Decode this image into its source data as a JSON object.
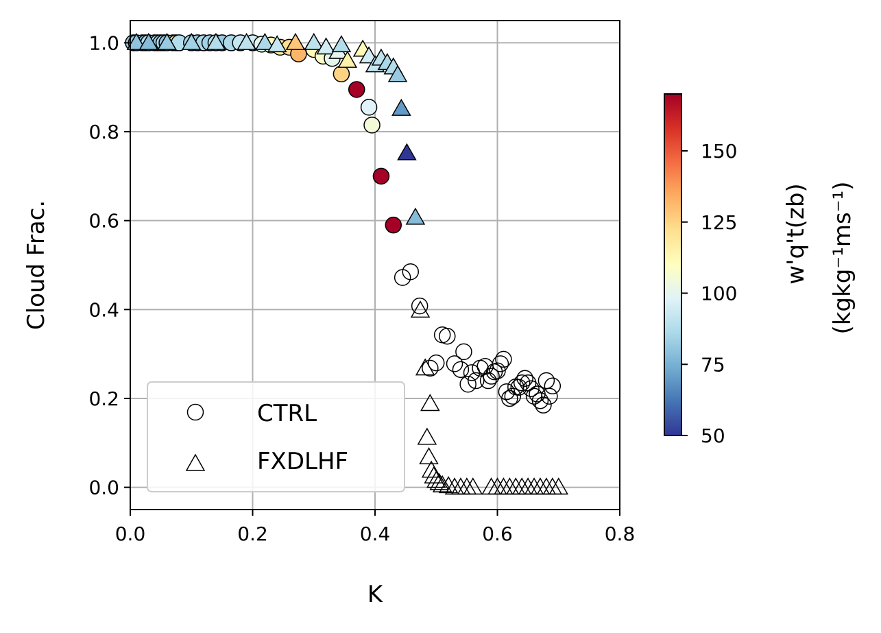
{
  "chart_data": {
    "type": "scatter",
    "xlabel": "K",
    "ylabel": "Cloud Frac.",
    "xlim": [
      0.0,
      0.8
    ],
    "ylim": [
      -0.05,
      1.05
    ],
    "xticks": [
      "0.0",
      "0.2",
      "0.4",
      "0.6",
      "0.8"
    ],
    "yticks": [
      "0.0",
      "0.2",
      "0.4",
      "0.6",
      "0.8",
      "1.0"
    ],
    "grid": true,
    "legend_position": "lower-left",
    "colormap": "RdYlBu_r",
    "colormap_stops": [
      "#313695",
      "#4575b4",
      "#74add1",
      "#abd9e9",
      "#e0f3f8",
      "#ffffbf",
      "#fee090",
      "#fdae61",
      "#f46d43",
      "#d73027",
      "#a50026"
    ],
    "colorbar": {
      "range": [
        50,
        170
      ],
      "ticks": [
        "50",
        "75",
        "100",
        "125",
        "150"
      ],
      "label_line1": "w'q't(zb)",
      "label_line2": "(kgkg⁻¹ms⁻¹)"
    },
    "series": [
      {
        "name": "CTRL",
        "marker": "circle",
        "colored_points": [
          [
            0.005,
            1.0,
            80
          ],
          [
            0.01,
            1.0,
            82
          ],
          [
            0.02,
            1.0,
            85
          ],
          [
            0.025,
            1.0,
            78
          ],
          [
            0.03,
            1.0,
            88
          ],
          [
            0.04,
            1.0,
            84
          ],
          [
            0.045,
            1.0,
            90
          ],
          [
            0.05,
            1.0,
            82
          ],
          [
            0.055,
            1.0,
            86
          ],
          [
            0.06,
            1.0,
            80
          ],
          [
            0.07,
            1.0,
            84
          ],
          [
            0.075,
            1.0,
            120
          ],
          [
            0.08,
            1.0,
            88
          ],
          [
            0.1,
            1.0,
            85
          ],
          [
            0.11,
            1.0,
            82
          ],
          [
            0.12,
            1.0,
            86
          ],
          [
            0.13,
            1.0,
            84
          ],
          [
            0.14,
            1.0,
            90
          ],
          [
            0.15,
            1.0,
            82
          ],
          [
            0.165,
            1.0,
            86
          ],
          [
            0.18,
            1.0,
            92
          ],
          [
            0.2,
            1.0,
            95
          ],
          [
            0.215,
            0.997,
            100
          ],
          [
            0.23,
            0.995,
            110
          ],
          [
            0.245,
            0.99,
            118
          ],
          [
            0.26,
            0.99,
            122
          ],
          [
            0.275,
            0.975,
            132
          ],
          [
            0.3,
            0.985,
            112
          ],
          [
            0.315,
            0.97,
            108
          ],
          [
            0.33,
            0.965,
            100
          ],
          [
            0.345,
            0.93,
            125
          ],
          [
            0.37,
            0.895,
            170
          ],
          [
            0.39,
            0.855,
            98
          ],
          [
            0.395,
            0.815,
            105
          ],
          [
            0.41,
            0.7,
            170
          ],
          [
            0.43,
            0.59,
            170
          ]
        ],
        "hollow_points": [
          [
            0.445,
            0.472
          ],
          [
            0.458,
            0.485
          ],
          [
            0.473,
            0.408
          ],
          [
            0.49,
            0.268
          ],
          [
            0.5,
            0.28
          ],
          [
            0.51,
            0.343
          ],
          [
            0.518,
            0.34
          ],
          [
            0.53,
            0.278
          ],
          [
            0.54,
            0.265
          ],
          [
            0.545,
            0.305
          ],
          [
            0.552,
            0.232
          ],
          [
            0.558,
            0.258
          ],
          [
            0.565,
            0.24
          ],
          [
            0.572,
            0.268
          ],
          [
            0.58,
            0.272
          ],
          [
            0.585,
            0.24
          ],
          [
            0.59,
            0.25
          ],
          [
            0.595,
            0.26
          ],
          [
            0.6,
            0.262
          ],
          [
            0.605,
            0.278
          ],
          [
            0.61,
            0.288
          ],
          [
            0.615,
            0.215
          ],
          [
            0.62,
            0.2
          ],
          [
            0.625,
            0.205
          ],
          [
            0.63,
            0.226
          ],
          [
            0.635,
            0.225
          ],
          [
            0.64,
            0.235
          ],
          [
            0.645,
            0.245
          ],
          [
            0.65,
            0.235
          ],
          [
            0.655,
            0.222
          ],
          [
            0.66,
            0.205
          ],
          [
            0.665,
            0.21
          ],
          [
            0.67,
            0.195
          ],
          [
            0.675,
            0.185
          ],
          [
            0.68,
            0.24
          ],
          [
            0.685,
            0.205
          ],
          [
            0.69,
            0.228
          ]
        ]
      },
      {
        "name": "FXDLHF",
        "marker": "triangle",
        "colored_points": [
          [
            0.01,
            1.0,
            80
          ],
          [
            0.03,
            1.0,
            78
          ],
          [
            0.06,
            1.0,
            82
          ],
          [
            0.1,
            1.0,
            84
          ],
          [
            0.14,
            1.0,
            88
          ],
          [
            0.19,
            1.0,
            90
          ],
          [
            0.22,
            1.0,
            86
          ],
          [
            0.24,
            0.995,
            92
          ],
          [
            0.27,
            1.0,
            128
          ],
          [
            0.3,
            1.0,
            90
          ],
          [
            0.32,
            0.99,
            95
          ],
          [
            0.34,
            0.98,
            100
          ],
          [
            0.345,
            0.995,
            88
          ],
          [
            0.355,
            0.96,
            115
          ],
          [
            0.38,
            0.985,
            112
          ],
          [
            0.39,
            0.97,
            95
          ],
          [
            0.4,
            0.95,
            92
          ],
          [
            0.41,
            0.965,
            90
          ],
          [
            0.42,
            0.955,
            86
          ],
          [
            0.43,
            0.945,
            88
          ],
          [
            0.437,
            0.928,
            82
          ],
          [
            0.443,
            0.852,
            70
          ],
          [
            0.452,
            0.752,
            50
          ],
          [
            0.466,
            0.607,
            78
          ]
        ],
        "hollow_points": [
          [
            0.474,
            0.398
          ],
          [
            0.482,
            0.268
          ],
          [
            0.49,
            0.188
          ],
          [
            0.485,
            0.112
          ],
          [
            0.488,
            0.068
          ],
          [
            0.492,
            0.038
          ],
          [
            0.496,
            0.025
          ],
          [
            0.5,
            0.015
          ],
          [
            0.505,
            0.01
          ],
          [
            0.51,
            0.005
          ],
          [
            0.52,
            0.003
          ],
          [
            0.53,
            0.0
          ],
          [
            0.54,
            0.0
          ],
          [
            0.55,
            0.0
          ],
          [
            0.56,
            0.0
          ],
          [
            0.59,
            0.0
          ],
          [
            0.6,
            0.0
          ],
          [
            0.61,
            0.0
          ],
          [
            0.62,
            0.0
          ],
          [
            0.63,
            0.0
          ],
          [
            0.64,
            0.0
          ],
          [
            0.65,
            0.0
          ],
          [
            0.66,
            0.0
          ],
          [
            0.67,
            0.0
          ],
          [
            0.68,
            0.0
          ],
          [
            0.69,
            0.0
          ],
          [
            0.7,
            0.0
          ]
        ]
      }
    ]
  }
}
